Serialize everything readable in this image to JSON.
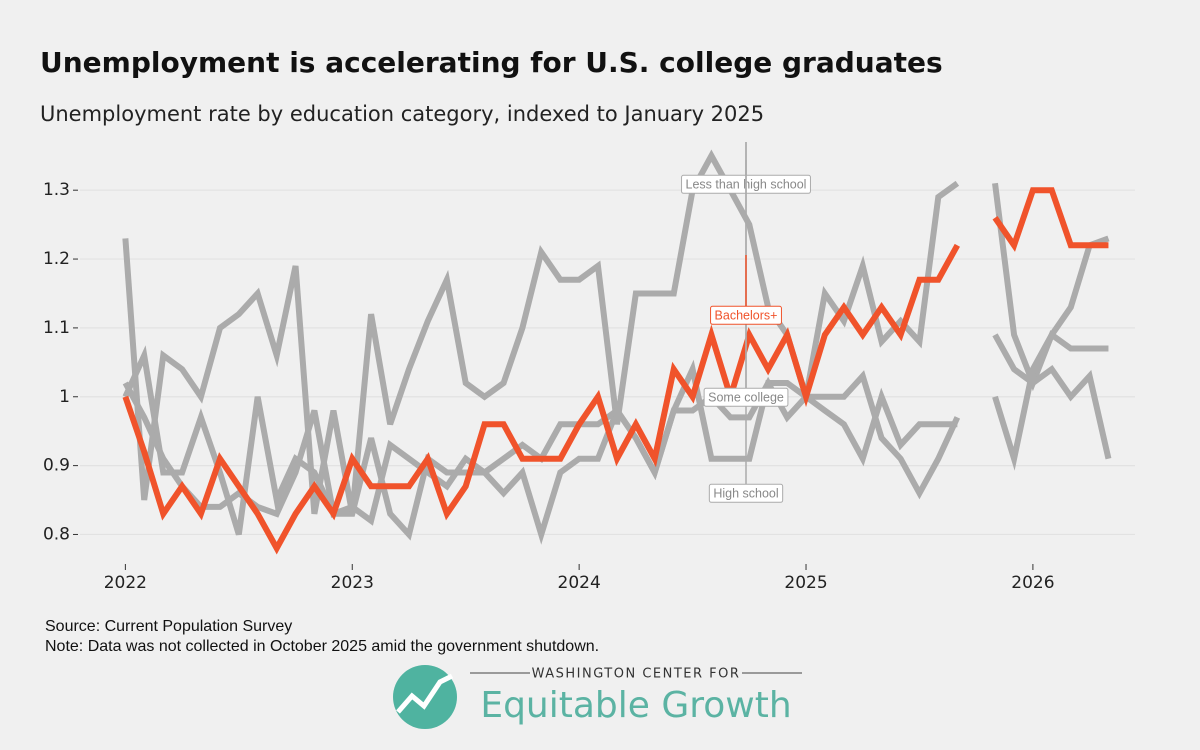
{
  "chart_data": {
    "type": "line",
    "title": "Unemployment is accelerating for U.S. college graduates",
    "subtitle": "Unemployment rate by education category, indexed to January 2025",
    "x": [
      2022,
      2022.083,
      2022.167,
      2022.25,
      2022.333,
      2022.417,
      2022.5,
      2022.583,
      2022.667,
      2022.75,
      2022.833,
      2022.917,
      2023,
      2023.083,
      2023.167,
      2023.25,
      2023.333,
      2023.417,
      2023.5,
      2023.583,
      2023.667,
      2023.75,
      2023.833,
      2023.917,
      2024,
      2024.083,
      2024.167,
      2024.25,
      2024.333,
      2024.417,
      2024.5,
      2024.583,
      2024.667,
      2024.75,
      2024.833,
      2024.917,
      2025,
      2025.083,
      2025.167,
      2025.25,
      2025.333,
      2025.417,
      2025.5,
      2025.583,
      2025.667,
      2025.75,
      2025.833,
      2025.917,
      2026,
      2026.083,
      2026.167,
      2026.25,
      2026.333
    ],
    "series": [
      {
        "name": "Less than high school",
        "color": "#ababab",
        "values": [
          1.23,
          0.85,
          1.06,
          1.04,
          1.0,
          1.1,
          1.12,
          1.15,
          1.06,
          1.19,
          0.83,
          0.98,
          0.83,
          1.12,
          0.96,
          1.04,
          1.11,
          1.17,
          1.02,
          1.0,
          1.02,
          1.1,
          1.21,
          1.17,
          1.17,
          1.19,
          0.96,
          1.15,
          1.15,
          1.15,
          1.3,
          1.35,
          1.3,
          1.25,
          1.13,
          1.09,
          1.0,
          1.15,
          1.11,
          1.19,
          1.08,
          1.11,
          1.08,
          1.29,
          1.31,
          null,
          1.31,
          1.09,
          1.02,
          1.09,
          1.07,
          1.07,
          1.07
        ]
      },
      {
        "name": "High school",
        "color": "#ababab",
        "values": [
          1.0,
          1.06,
          0.89,
          0.89,
          0.97,
          0.89,
          0.8,
          1.0,
          0.85,
          0.91,
          0.89,
          0.83,
          0.83,
          0.94,
          0.83,
          0.8,
          0.91,
          0.89,
          0.89,
          0.89,
          0.86,
          0.89,
          0.8,
          0.89,
          0.91,
          0.91,
          0.98,
          0.94,
          0.89,
          0.98,
          1.04,
          0.91,
          0.91,
          0.91,
          1.02,
          1.02,
          1.0,
          1.0,
          1.0,
          1.03,
          0.94,
          0.91,
          0.86,
          0.91,
          0.97,
          null,
          1.0,
          0.91,
          1.04,
          1.09,
          1.13,
          1.22,
          1.23
        ]
      },
      {
        "name": "Some college",
        "color": "#ababab",
        "values": [
          1.02,
          0.97,
          0.91,
          0.87,
          0.84,
          0.84,
          0.86,
          0.84,
          0.83,
          0.89,
          0.98,
          0.83,
          0.84,
          0.82,
          0.93,
          0.91,
          0.89,
          0.87,
          0.91,
          0.89,
          0.91,
          0.93,
          0.91,
          0.96,
          0.96,
          0.96,
          0.98,
          0.94,
          0.89,
          0.98,
          0.98,
          1.0,
          0.97,
          0.97,
          1.02,
          0.97,
          1.0,
          0.98,
          0.96,
          0.91,
          1.0,
          0.93,
          0.96,
          0.96,
          0.96,
          null,
          1.09,
          1.04,
          1.02,
          1.04,
          1.0,
          1.03,
          0.91
        ]
      },
      {
        "name": "Bachelors+",
        "color": "#f0532b",
        "values": [
          1.0,
          0.92,
          0.83,
          0.87,
          0.83,
          0.91,
          0.87,
          0.83,
          0.78,
          0.83,
          0.87,
          0.83,
          0.91,
          0.87,
          0.87,
          0.87,
          0.91,
          0.83,
          0.87,
          0.96,
          0.96,
          0.91,
          0.91,
          0.91,
          0.96,
          1.0,
          0.91,
          0.96,
          0.91,
          1.04,
          1.0,
          1.09,
          1.0,
          1.09,
          1.04,
          1.09,
          1.0,
          1.09,
          1.13,
          1.09,
          1.13,
          1.09,
          1.17,
          1.17,
          1.22,
          null,
          1.26,
          1.22,
          1.3,
          1.3,
          1.22,
          1.22,
          1.22
        ]
      }
    ],
    "xlim": [
      2021.8,
      2026.45
    ],
    "xticks": [
      2022,
      2023,
      2024,
      2025,
      2026
    ],
    "ylim": [
      0.76,
      1.37
    ],
    "yticks": [
      0.8,
      0.9,
      1,
      1.1,
      1.2,
      1.3
    ],
    "grid": true,
    "source": "Source: Current Population Survey",
    "note": "Note: Data was not collected in October 2025 amid the government shutdown."
  },
  "logo": {
    "top": "WASHINGTON CENTER FOR",
    "name": "Equitable Growth"
  }
}
